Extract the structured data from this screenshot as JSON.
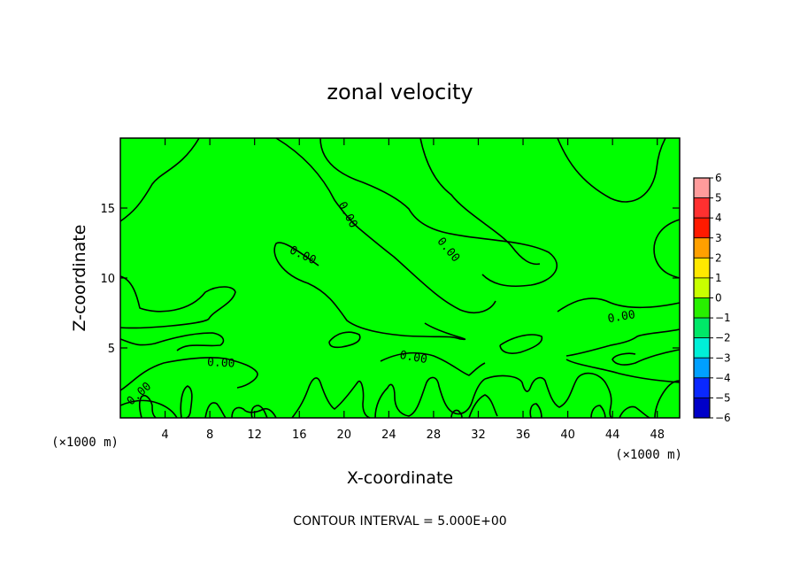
{
  "chart_data": {
    "type": "heatmap",
    "title": "zonal velocity",
    "xlabel": "X-coordinate",
    "ylabel": "Z-coordinate",
    "x_unit": "(×1000 m)",
    "z_unit": "(×1000 m)",
    "x_ticks": [
      4,
      8,
      12,
      16,
      20,
      24,
      28,
      32,
      36,
      40,
      44,
      48
    ],
    "y_ticks": [
      5,
      10,
      15
    ],
    "xlim": [
      0,
      50
    ],
    "ylim": [
      0,
      20
    ],
    "field_value": 0,
    "contour_labels": [
      {
        "text": "0.00",
        "x": 20.3,
        "y": 14.5,
        "angle": 62
      },
      {
        "text": "0.00",
        "x": 16.3,
        "y": 11.6,
        "angle": 25
      },
      {
        "text": "0.00",
        "x": 29.3,
        "y": 12.0,
        "angle": 50
      },
      {
        "text": "0.00",
        "x": 44.8,
        "y": 7.2,
        "angle": -10
      },
      {
        "text": "0.00",
        "x": 9.0,
        "y": 3.9,
        "angle": 3
      },
      {
        "text": "0.00",
        "x": 26.2,
        "y": 4.3,
        "angle": 10
      },
      {
        "text": "0.00",
        "x": 1.7,
        "y": 1.7,
        "angle": -42
      }
    ],
    "colorbar": {
      "levels": [
        6,
        5,
        4,
        3,
        2,
        1,
        0,
        -1,
        -2,
        -3,
        -4,
        -5,
        -6
      ],
      "colors": [
        "#ff9c9c",
        "#ff3030",
        "#ff1a00",
        "#ffa000",
        "#ffe800",
        "#c8ff00",
        "#28f000",
        "#00e868",
        "#00f0d8",
        "#00a0ff",
        "#0a28ff",
        "#0000c8",
        "#8000c0"
      ]
    },
    "footer": "CONTOUR INTERVAL = 5.000E+00"
  }
}
